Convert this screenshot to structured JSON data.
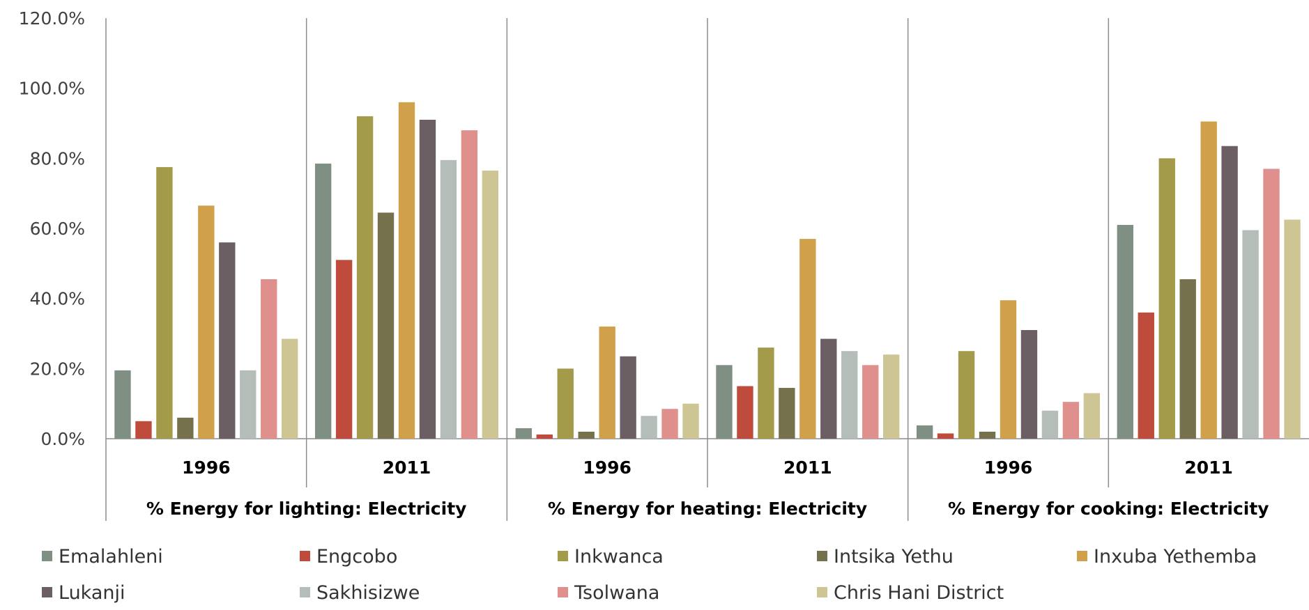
{
  "chart_data": {
    "type": "bar",
    "ylim": [
      0,
      120
    ],
    "yticks": [
      "0.0%",
      "20.0%",
      "40.0%",
      "60.0%",
      "80.0%",
      "100.0%",
      "120.0%"
    ],
    "groups": [
      {
        "label": "% Energy for lighting: Electricity",
        "years": [
          "1996",
          "2011"
        ]
      },
      {
        "label": "% Energy for heating: Electricity",
        "years": [
          "1996",
          "2011"
        ]
      },
      {
        "label": "% Energy for cooking: Electricity",
        "years": [
          "1996",
          "2011"
        ]
      }
    ],
    "series": [
      {
        "name": "Emalahleni",
        "color": "#7f8f84",
        "values": [
          19.5,
          78.5,
          3.0,
          21.0,
          3.8,
          61.0
        ]
      },
      {
        "name": "Engcobo",
        "color": "#be4b3c",
        "values": [
          5.0,
          51.0,
          1.2,
          15.0,
          1.5,
          36.0
        ]
      },
      {
        "name": "Inkwanca",
        "color": "#a39b4a",
        "values": [
          77.5,
          92.0,
          20.0,
          26.0,
          25.0,
          80.0
        ]
      },
      {
        "name": "Intsika Yethu",
        "color": "#76714d",
        "values": [
          6.0,
          64.5,
          2.0,
          14.5,
          2.0,
          45.5
        ]
      },
      {
        "name": "Inxuba Yethemba",
        "color": "#d1a04b",
        "values": [
          66.5,
          96.0,
          32.0,
          57.0,
          39.5,
          90.5
        ]
      },
      {
        "name": "Lukanji",
        "color": "#6c5f63",
        "values": [
          56.0,
          91.0,
          23.5,
          28.5,
          31.0,
          83.5
        ]
      },
      {
        "name": "Sakhisizwe",
        "color": "#b4bdb8",
        "values": [
          19.5,
          79.5,
          6.5,
          25.0,
          8.0,
          59.5
        ]
      },
      {
        "name": "Tsolwana",
        "color": "#e0908c",
        "values": [
          45.5,
          88.0,
          8.5,
          21.0,
          10.5,
          77.0
        ]
      },
      {
        "name": "Chris Hani District",
        "color": "#cdc594",
        "values": [
          28.5,
          76.5,
          10.0,
          24.0,
          13.0,
          62.5
        ]
      }
    ]
  }
}
